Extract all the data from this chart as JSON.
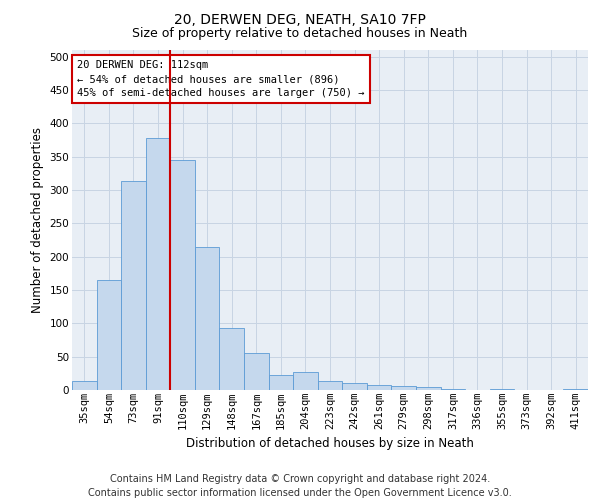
{
  "title1": "20, DERWEN DEG, NEATH, SA10 7FP",
  "title2": "Size of property relative to detached houses in Neath",
  "xlabel": "Distribution of detached houses by size in Neath",
  "ylabel": "Number of detached properties",
  "categories": [
    "35sqm",
    "54sqm",
    "73sqm",
    "91sqm",
    "110sqm",
    "129sqm",
    "148sqm",
    "167sqm",
    "185sqm",
    "204sqm",
    "223sqm",
    "242sqm",
    "261sqm",
    "279sqm",
    "298sqm",
    "317sqm",
    "336sqm",
    "355sqm",
    "373sqm",
    "392sqm",
    "411sqm"
  ],
  "values": [
    13,
    165,
    313,
    378,
    345,
    215,
    93,
    55,
    23,
    27,
    13,
    10,
    8,
    6,
    4,
    1,
    0,
    1,
    0,
    0,
    1
  ],
  "bar_color": "#c5d8ed",
  "bar_edge_color": "#5b9bd5",
  "vline_color": "#cc0000",
  "vline_x_index": 4,
  "annotation_line1": "20 DERWEN DEG: 112sqm",
  "annotation_line2": "← 54% of detached houses are smaller (896)",
  "annotation_line3": "45% of semi-detached houses are larger (750) →",
  "annotation_box_color": "#ffffff",
  "annotation_box_edge": "#cc0000",
  "ylim": [
    0,
    510
  ],
  "yticks": [
    0,
    50,
    100,
    150,
    200,
    250,
    300,
    350,
    400,
    450,
    500
  ],
  "grid_color": "#c8d4e3",
  "bg_color": "#e8eef5",
  "footer": "Contains HM Land Registry data © Crown copyright and database right 2024.\nContains public sector information licensed under the Open Government Licence v3.0.",
  "title1_fontsize": 10,
  "title2_fontsize": 9,
  "xlabel_fontsize": 8.5,
  "ylabel_fontsize": 8.5,
  "tick_fontsize": 7.5,
  "annotation_fontsize": 7.5,
  "footer_fontsize": 7
}
